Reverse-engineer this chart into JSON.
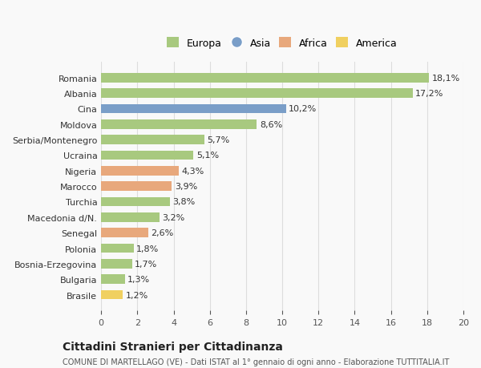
{
  "countries": [
    "Brasile",
    "Bulgaria",
    "Bosnia-Erzegovina",
    "Polonia",
    "Senegal",
    "Macedonia d/N.",
    "Turchia",
    "Marocco",
    "Nigeria",
    "Ucraina",
    "Serbia/Montenegro",
    "Moldova",
    "Cina",
    "Albania",
    "Romania"
  ],
  "values": [
    1.2,
    1.3,
    1.7,
    1.8,
    2.6,
    3.2,
    3.8,
    3.9,
    4.3,
    5.1,
    5.7,
    8.6,
    10.2,
    17.2,
    18.1
  ],
  "categories": [
    "America",
    "Europa",
    "Europa",
    "Europa",
    "Africa",
    "Europa",
    "Europa",
    "Africa",
    "Africa",
    "Europa",
    "Europa",
    "Europa",
    "Asia",
    "Europa",
    "Europa"
  ],
  "category_colors": {
    "Europa": "#a8c97f",
    "Asia": "#7a9ec8",
    "Africa": "#e8a87c",
    "America": "#f0d060"
  },
  "legend_order": [
    "Europa",
    "Asia",
    "Africa",
    "America"
  ],
  "xlim": [
    0,
    20
  ],
  "xticks": [
    0,
    2,
    4,
    6,
    8,
    10,
    12,
    14,
    16,
    18,
    20
  ],
  "title": "Cittadini Stranieri per Cittadinanza",
  "subtitle": "COMUNE DI MARTELLAGO (VE) - Dati ISTAT al 1° gennaio di ogni anno - Elaborazione TUTTITALIA.IT",
  "background_color": "#f9f9f9",
  "bar_height": 0.6,
  "grid_color": "#dddddd"
}
